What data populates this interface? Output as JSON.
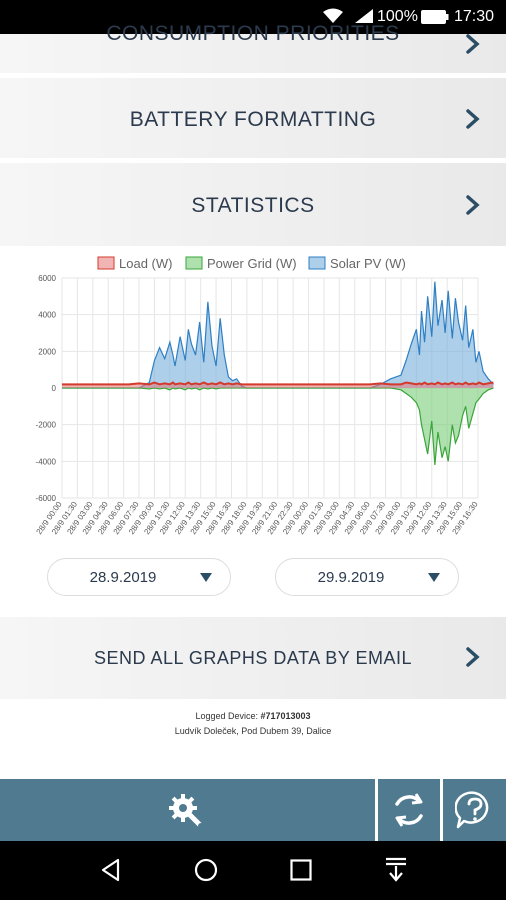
{
  "status_bar": {
    "battery_percent": "100%",
    "time": "17:30",
    "icons": [
      "wifi-icon",
      "signal-icon",
      "battery-icon"
    ]
  },
  "menu": {
    "consumption_label": "CONSUMPTION PRIORITIES",
    "battery_label": "BATTERY FORMATTING",
    "statistics_label": "STATISTICS",
    "email_label": "SEND ALL GRAPHS DATA BY EMAIL"
  },
  "dates": {
    "from": "28.9.2019",
    "to": "29.9.2019"
  },
  "device": {
    "logged_label": "Logged Device: ",
    "device_id": "#717013003",
    "owner": "Ludvík Doleček, Pod Dubem 39, Dalice"
  },
  "colors": {
    "accent": "#4f7a8f",
    "text": "#2b3a4d",
    "load": "#d33a2c",
    "grid": "#3aa53a",
    "solar": "#2e7fc4"
  },
  "chart_data": {
    "type": "area",
    "legend_position": "top",
    "grid": true,
    "ylim": [
      -6000,
      6000
    ],
    "yticks": [
      6000,
      4000,
      2000,
      0,
      -2000,
      -4000,
      -6000
    ],
    "xticks": [
      "28/9 00:00",
      "28/9 01:30",
      "28/9 03:00",
      "28/9 04:30",
      "28/9 06:00",
      "28/9 07:30",
      "28/9 09:00",
      "28/9 10:30",
      "28/9 12:00",
      "28/9 13:30",
      "28/9 15:00",
      "28/9 16:30",
      "28/9 18:00",
      "28/9 19:30",
      "28/9 21:00",
      "28/9 22:30",
      "29/9 00:00",
      "29/9 01:30",
      "29/9 03:00",
      "29/9 04:30",
      "29/9 06:00",
      "29/9 07:30",
      "29/9 09:00",
      "29/9 10:30",
      "29/9 12:00",
      "29/9 13:30",
      "29/9 15:00",
      "29/9 16:30"
    ],
    "x_hours": [
      0,
      6.5,
      7.5,
      8.5,
      9.0,
      9.5,
      10.0,
      10.5,
      10.8,
      11.0,
      11.5,
      12.0,
      12.3,
      12.6,
      13.0,
      13.4,
      13.8,
      14.2,
      14.6,
      15.0,
      15.4,
      15.8,
      16.2,
      16.6,
      17.0,
      17.5,
      18.0,
      24.0,
      30.0,
      31.0,
      32.0,
      33.0,
      33.5,
      34.0,
      34.5,
      34.8,
      35.0,
      35.3,
      35.6,
      36.0,
      36.3,
      36.6,
      37.0,
      37.3,
      37.6,
      38.0,
      38.3,
      38.6,
      39.0,
      39.3,
      39.6,
      40.0,
      40.3,
      40.6,
      41.0,
      41.5,
      42.0
    ],
    "series": [
      {
        "name": "Load (W)",
        "values": [
          200,
          200,
          250,
          200,
          300,
          200,
          250,
          200,
          300,
          200,
          250,
          200,
          300,
          200,
          250,
          200,
          300,
          200,
          250,
          200,
          300,
          200,
          250,
          200,
          250,
          200,
          200,
          200,
          200,
          250,
          200,
          200,
          300,
          250,
          200,
          250,
          200,
          300,
          200,
          250,
          200,
          300,
          200,
          250,
          200,
          300,
          200,
          250,
          200,
          300,
          200,
          250,
          200,
          300,
          200,
          250,
          300
        ]
      },
      {
        "name": "Power Grid (W)",
        "values": [
          0,
          0,
          0,
          -50,
          0,
          -50,
          0,
          -100,
          0,
          -50,
          0,
          -100,
          0,
          -50,
          0,
          -100,
          0,
          -50,
          0,
          -50,
          0,
          0,
          0,
          0,
          0,
          0,
          0,
          0,
          0,
          0,
          0,
          -100,
          -300,
          -500,
          -800,
          -1200,
          -2000,
          -2800,
          -3600,
          -1800,
          -4200,
          -2400,
          -3800,
          -3200,
          -4000,
          -2000,
          -3000,
          -2600,
          -1500,
          -1000,
          -2200,
          -1400,
          -800,
          -600,
          -300,
          -100,
          0
        ]
      },
      {
        "name": "Solar PV (W)",
        "values": [
          0,
          0,
          0,
          300,
          1500,
          2200,
          1600,
          2500,
          1800,
          1200,
          2800,
          1500,
          3200,
          2400,
          1800,
          3600,
          1400,
          4700,
          2300,
          1200,
          3800,
          1800,
          600,
          400,
          500,
          100,
          0,
          0,
          0,
          200,
          500,
          700,
          1500,
          2400,
          3200,
          1800,
          4200,
          2500,
          5000,
          2800,
          5800,
          3400,
          4800,
          3000,
          5300,
          2700,
          4900,
          3600,
          2600,
          4500,
          2200,
          3200,
          1400,
          2000,
          900,
          500,
          200
        ]
      }
    ]
  }
}
